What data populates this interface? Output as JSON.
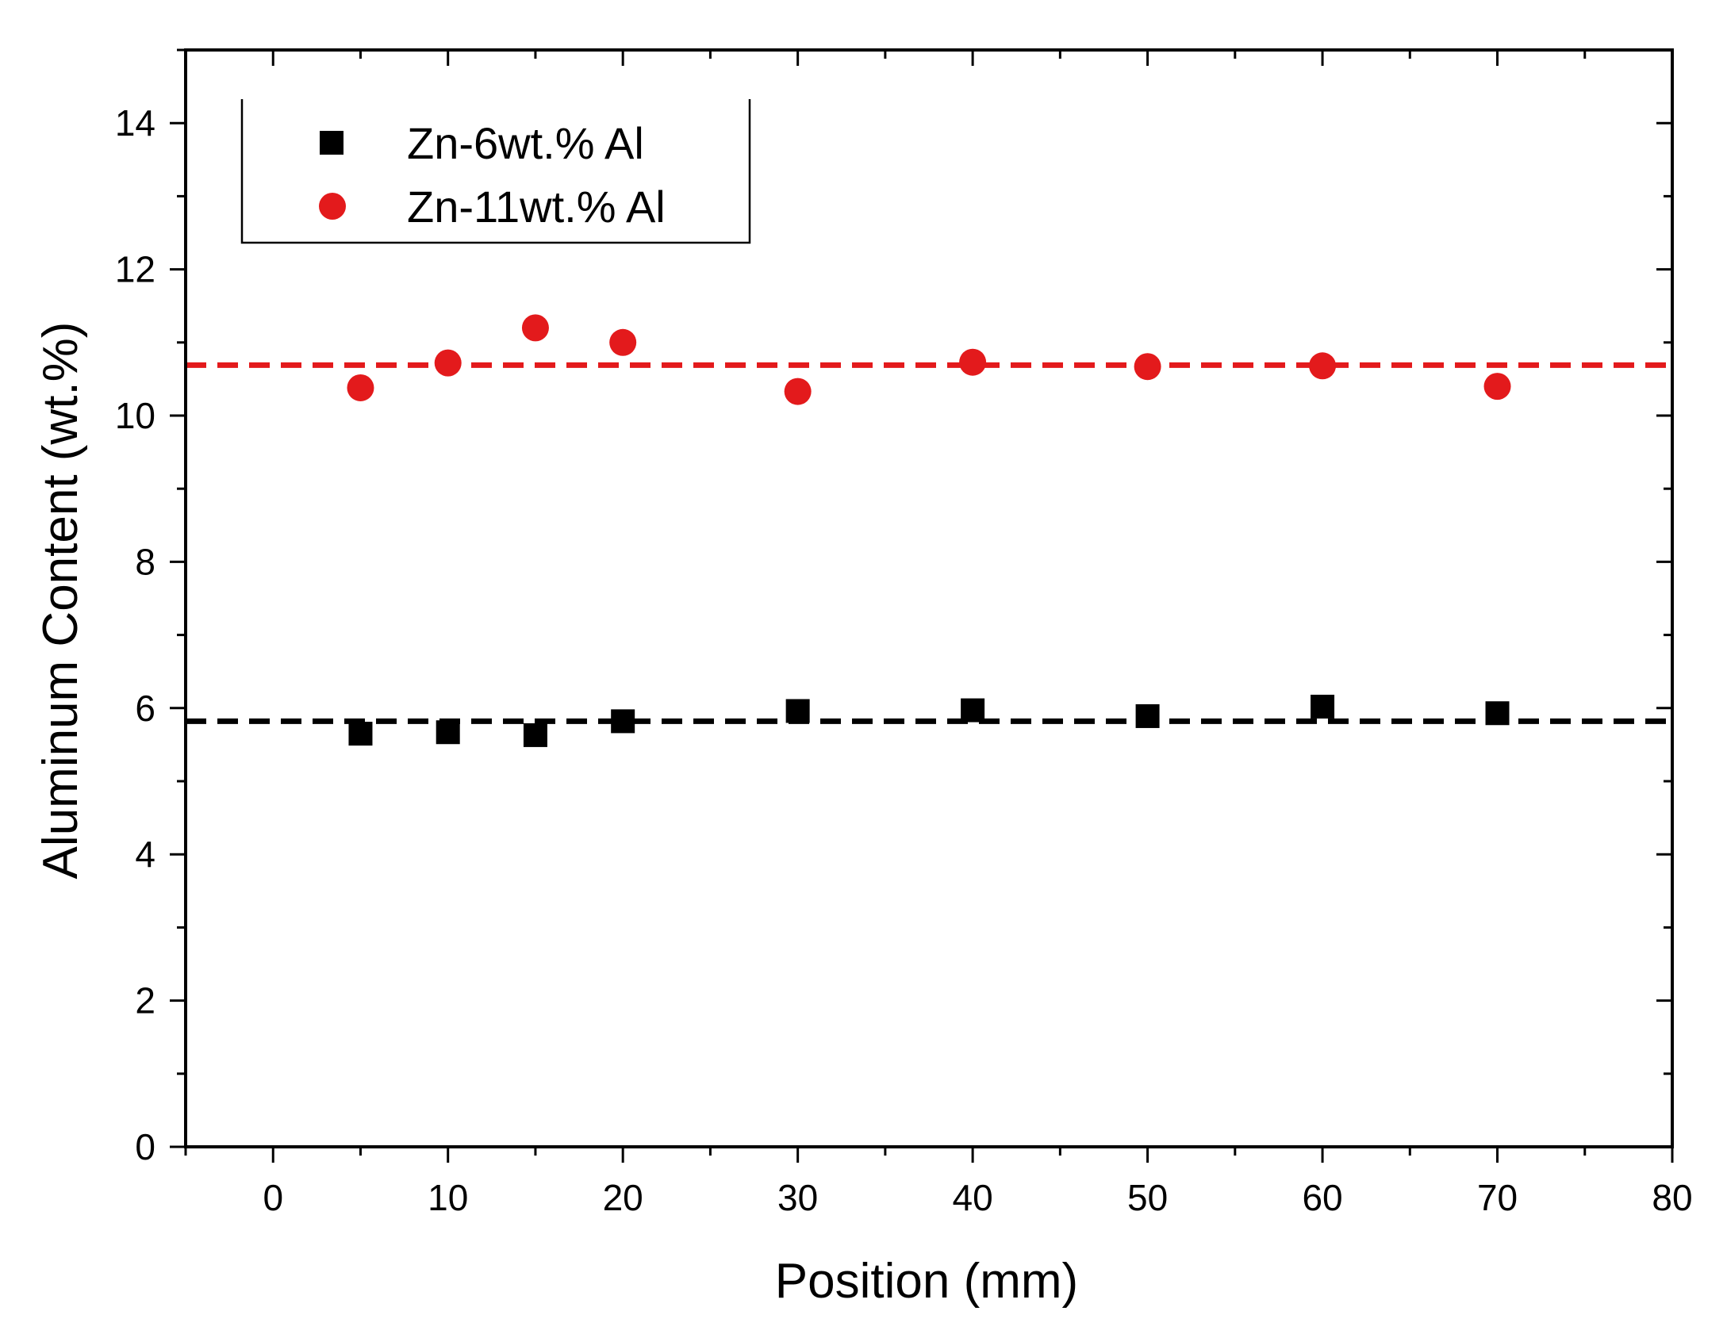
{
  "chart_data": {
    "type": "scatter",
    "title": "",
    "xlabel": "Position (mm)",
    "ylabel": "Aluminum Content (wt.%)",
    "xlim": [
      -5,
      80
    ],
    "ylim": [
      0,
      15
    ],
    "x_ticks": [
      0,
      10,
      20,
      30,
      40,
      50,
      60,
      70,
      80
    ],
    "y_ticks": [
      0,
      2,
      4,
      6,
      8,
      10,
      12,
      14
    ],
    "grid": false,
    "legend_position": "top-left",
    "series": [
      {
        "name": "Zn-6wt.% Al",
        "marker": "square",
        "color": "#000000",
        "x": [
          5,
          10,
          15,
          20,
          30,
          40,
          50,
          60,
          70
        ],
        "y": [
          5.65,
          5.67,
          5.63,
          5.82,
          5.96,
          5.97,
          5.89,
          6.02,
          5.93
        ],
        "reference_line": 5.82
      },
      {
        "name": "Zn-11wt.% Al",
        "marker": "circle",
        "color": "#e31a1c",
        "x": [
          5,
          10,
          15,
          20,
          30,
          40,
          50,
          60,
          70
        ],
        "y": [
          10.38,
          10.72,
          11.2,
          11.0,
          10.33,
          10.73,
          10.67,
          10.68,
          10.4
        ],
        "reference_line": 10.69
      }
    ]
  }
}
